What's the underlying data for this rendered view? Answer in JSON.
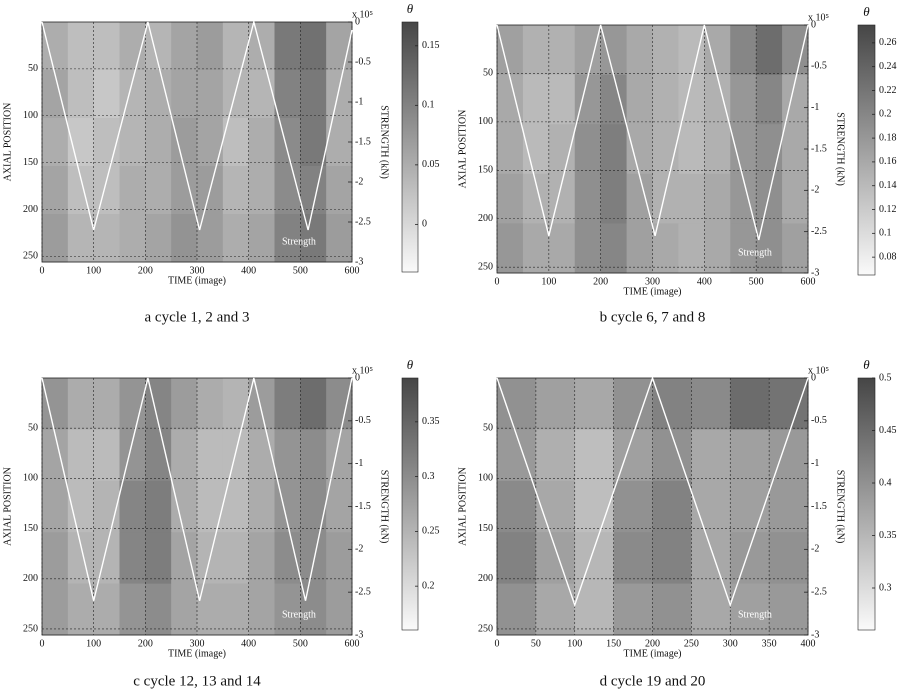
{
  "chart_data": [
    {
      "type": "heatmap",
      "caption": "a cycle 1, 2 and 3",
      "xlabel": "TIME (image)",
      "ylabel": "AXIAL POSITION",
      "y2label": "STRENGTH (kN)",
      "multiplier": "x 10⁵",
      "colorbar_label": "θ",
      "xlim": [
        0,
        600
      ],
      "xticks": [
        0,
        100,
        200,
        300,
        400,
        500,
        600
      ],
      "ylim": [
        256,
        0
      ],
      "yticks": [
        50,
        100,
        150,
        200,
        250
      ],
      "y2lim": [
        -3,
        0
      ],
      "y2ticks": [
        0,
        -0.5,
        -1,
        -1.5,
        -2,
        -2.5,
        -3
      ],
      "clim": [
        -0.04,
        0.17
      ],
      "cticks": [
        0,
        0.05,
        0.1,
        0.15
      ],
      "grid": true,
      "z": [
        [
          0.05,
          0.03,
          0.03,
          0.05,
          0.04,
          0.06,
          0.07,
          0.04,
          0.05,
          0.11,
          0.12,
          0.06
        ],
        [
          0.06,
          0.03,
          0.02,
          0.04,
          0.05,
          0.06,
          0.06,
          0.04,
          0.04,
          0.1,
          0.11,
          0.05
        ],
        [
          0.05,
          0.02,
          0.03,
          0.04,
          0.05,
          0.07,
          0.06,
          0.03,
          0.05,
          0.09,
          0.11,
          0.05
        ],
        [
          0.06,
          0.03,
          0.03,
          0.05,
          0.05,
          0.07,
          0.07,
          0.04,
          0.05,
          0.09,
          0.1,
          0.06
        ],
        [
          0.07,
          0.04,
          0.04,
          0.05,
          0.06,
          0.08,
          0.07,
          0.05,
          0.06,
          0.1,
          0.11,
          0.07
        ]
      ],
      "series": [
        {
          "name": "Strength",
          "color": "#ffffff",
          "axis": "y2",
          "x": [
            0,
            100,
            205,
            305,
            410,
            515,
            600
          ],
          "values": [
            0,
            -2.6,
            0,
            -2.6,
            0,
            -2.6,
            -0.1
          ]
        }
      ]
    },
    {
      "type": "heatmap",
      "caption": "b cycle 6, 7 and 8",
      "xlabel": "TIME (image)",
      "ylabel": "AXIAL POSITION",
      "y2label": "STRENGTH (kN)",
      "multiplier": "x 10⁵",
      "colorbar_label": "θ",
      "xlim": [
        0,
        600
      ],
      "xticks": [
        0,
        100,
        200,
        300,
        400,
        500,
        600
      ],
      "ylim": [
        256,
        0
      ],
      "yticks": [
        50,
        100,
        150,
        200,
        250
      ],
      "y2lim": [
        -3,
        0
      ],
      "y2ticks": [
        0,
        -0.5,
        -1,
        -1.5,
        -2,
        -2.5,
        -3
      ],
      "clim": [
        0.065,
        0.275
      ],
      "cticks": [
        0.08,
        0.1,
        0.12,
        0.14,
        0.16,
        0.18,
        0.2,
        0.22,
        0.24,
        0.26
      ],
      "grid": true,
      "z": [
        [
          0.17,
          0.15,
          0.15,
          0.17,
          0.18,
          0.16,
          0.15,
          0.14,
          0.16,
          0.2,
          0.23,
          0.19
        ],
        [
          0.16,
          0.14,
          0.14,
          0.18,
          0.2,
          0.16,
          0.15,
          0.14,
          0.15,
          0.18,
          0.2,
          0.16
        ],
        [
          0.16,
          0.14,
          0.15,
          0.19,
          0.21,
          0.16,
          0.15,
          0.14,
          0.15,
          0.18,
          0.19,
          0.16
        ],
        [
          0.17,
          0.15,
          0.15,
          0.19,
          0.21,
          0.17,
          0.15,
          0.15,
          0.16,
          0.18,
          0.19,
          0.16
        ],
        [
          0.18,
          0.16,
          0.16,
          0.19,
          0.2,
          0.17,
          0.16,
          0.15,
          0.16,
          0.18,
          0.19,
          0.17
        ]
      ],
      "series": [
        {
          "name": "Strength",
          "color": "#ffffff",
          "axis": "y2",
          "x": [
            0,
            100,
            200,
            305,
            400,
            505,
            600
          ],
          "values": [
            0,
            -2.55,
            0,
            -2.55,
            0,
            -2.6,
            0
          ]
        }
      ]
    },
    {
      "type": "heatmap",
      "caption": "c cycle 12, 13 and 14",
      "xlabel": "TIME (image)",
      "ylabel": "AXIAL POSITION",
      "y2label": "STRENGTH (kN)",
      "multiplier": "x 10⁵",
      "colorbar_label": "θ",
      "xlim": [
        0,
        600
      ],
      "xticks": [
        0,
        100,
        200,
        300,
        400,
        500,
        600
      ],
      "ylim": [
        256,
        0
      ],
      "yticks": [
        50,
        100,
        150,
        200,
        250
      ],
      "y2lim": [
        -3,
        0
      ],
      "y2ticks": [
        0,
        -0.5,
        -1,
        -1.5,
        -2,
        -2.5,
        -3
      ],
      "clim": [
        0.16,
        0.39
      ],
      "cticks": [
        0.2,
        0.25,
        0.3,
        0.35
      ],
      "grid": true,
      "z": [
        [
          0.29,
          0.26,
          0.26,
          0.29,
          0.31,
          0.28,
          0.26,
          0.25,
          0.28,
          0.32,
          0.34,
          0.3
        ],
        [
          0.27,
          0.24,
          0.24,
          0.29,
          0.31,
          0.26,
          0.24,
          0.24,
          0.26,
          0.29,
          0.3,
          0.27
        ],
        [
          0.27,
          0.24,
          0.25,
          0.31,
          0.32,
          0.26,
          0.24,
          0.24,
          0.26,
          0.29,
          0.3,
          0.27
        ],
        [
          0.28,
          0.25,
          0.25,
          0.31,
          0.32,
          0.27,
          0.25,
          0.25,
          0.27,
          0.3,
          0.3,
          0.28
        ],
        [
          0.28,
          0.26,
          0.26,
          0.29,
          0.3,
          0.27,
          0.26,
          0.26,
          0.27,
          0.29,
          0.3,
          0.28
        ]
      ],
      "series": [
        {
          "name": "Strength",
          "color": "#ffffff",
          "axis": "y2",
          "x": [
            0,
            100,
            205,
            305,
            410,
            510,
            600
          ],
          "values": [
            0,
            -2.6,
            0,
            -2.6,
            0,
            -2.6,
            0
          ]
        }
      ]
    },
    {
      "type": "heatmap",
      "caption": "d cycle 19 and 20",
      "xlabel": "TIME (image)",
      "ylabel": "AXIAL POSITION",
      "y2label": "STRENGTH (kN)",
      "multiplier": "x 10⁵",
      "colorbar_label": "θ",
      "xlim": [
        0,
        400
      ],
      "xticks": [
        0,
        50,
        100,
        150,
        200,
        250,
        300,
        350,
        400
      ],
      "ylim": [
        256,
        0
      ],
      "yticks": [
        50,
        100,
        150,
        200,
        250
      ],
      "y2lim": [
        -3,
        0
      ],
      "y2ticks": [
        0,
        -0.5,
        -1,
        -1.5,
        -2,
        -2.5,
        -3
      ],
      "clim": [
        0.26,
        0.5
      ],
      "cticks": [
        0.3,
        0.35,
        0.4,
        0.45,
        0.5
      ],
      "grid": true,
      "z": [
        [
          0.4,
          0.38,
          0.37,
          0.4,
          0.42,
          0.41,
          0.45,
          0.44
        ],
        [
          0.39,
          0.36,
          0.34,
          0.38,
          0.4,
          0.37,
          0.38,
          0.39
        ],
        [
          0.41,
          0.37,
          0.34,
          0.4,
          0.42,
          0.37,
          0.38,
          0.39
        ],
        [
          0.42,
          0.38,
          0.35,
          0.41,
          0.42,
          0.37,
          0.39,
          0.4
        ],
        [
          0.4,
          0.37,
          0.35,
          0.39,
          0.4,
          0.37,
          0.38,
          0.39
        ]
      ],
      "series": [
        {
          "name": "Strength",
          "color": "#ffffff",
          "axis": "y2",
          "x": [
            0,
            100,
            200,
            300,
            400
          ],
          "values": [
            0,
            -2.65,
            0,
            -2.65,
            0
          ]
        }
      ]
    }
  ]
}
